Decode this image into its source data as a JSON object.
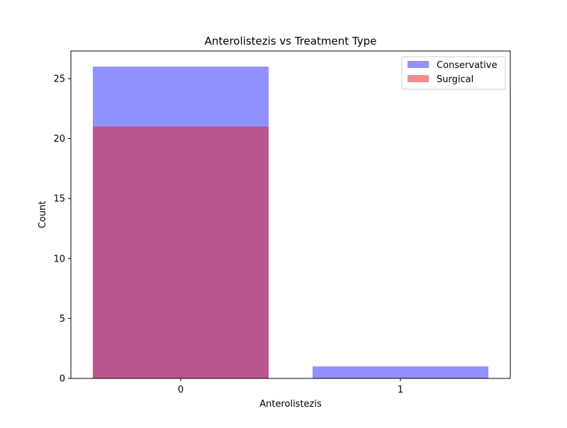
{
  "chart_data": {
    "type": "bar",
    "title": "Anterolistezis vs Treatment Type",
    "xlabel": "Anterolistezis",
    "ylabel": "Count",
    "categories": [
      "0",
      "1"
    ],
    "ylim": [
      0,
      27.3
    ],
    "yticks": [
      0,
      5,
      10,
      15,
      20,
      25
    ],
    "grid": false,
    "legend_position": "top-right",
    "overlay": true,
    "series": [
      {
        "name": "Conservative",
        "values": [
          26,
          1
        ],
        "color": "#0000ff",
        "alpha": 0.43
      },
      {
        "name": "Surgical",
        "values": [
          21,
          0
        ],
        "color": "#e31a1c",
        "alpha": 0.5
      }
    ]
  }
}
